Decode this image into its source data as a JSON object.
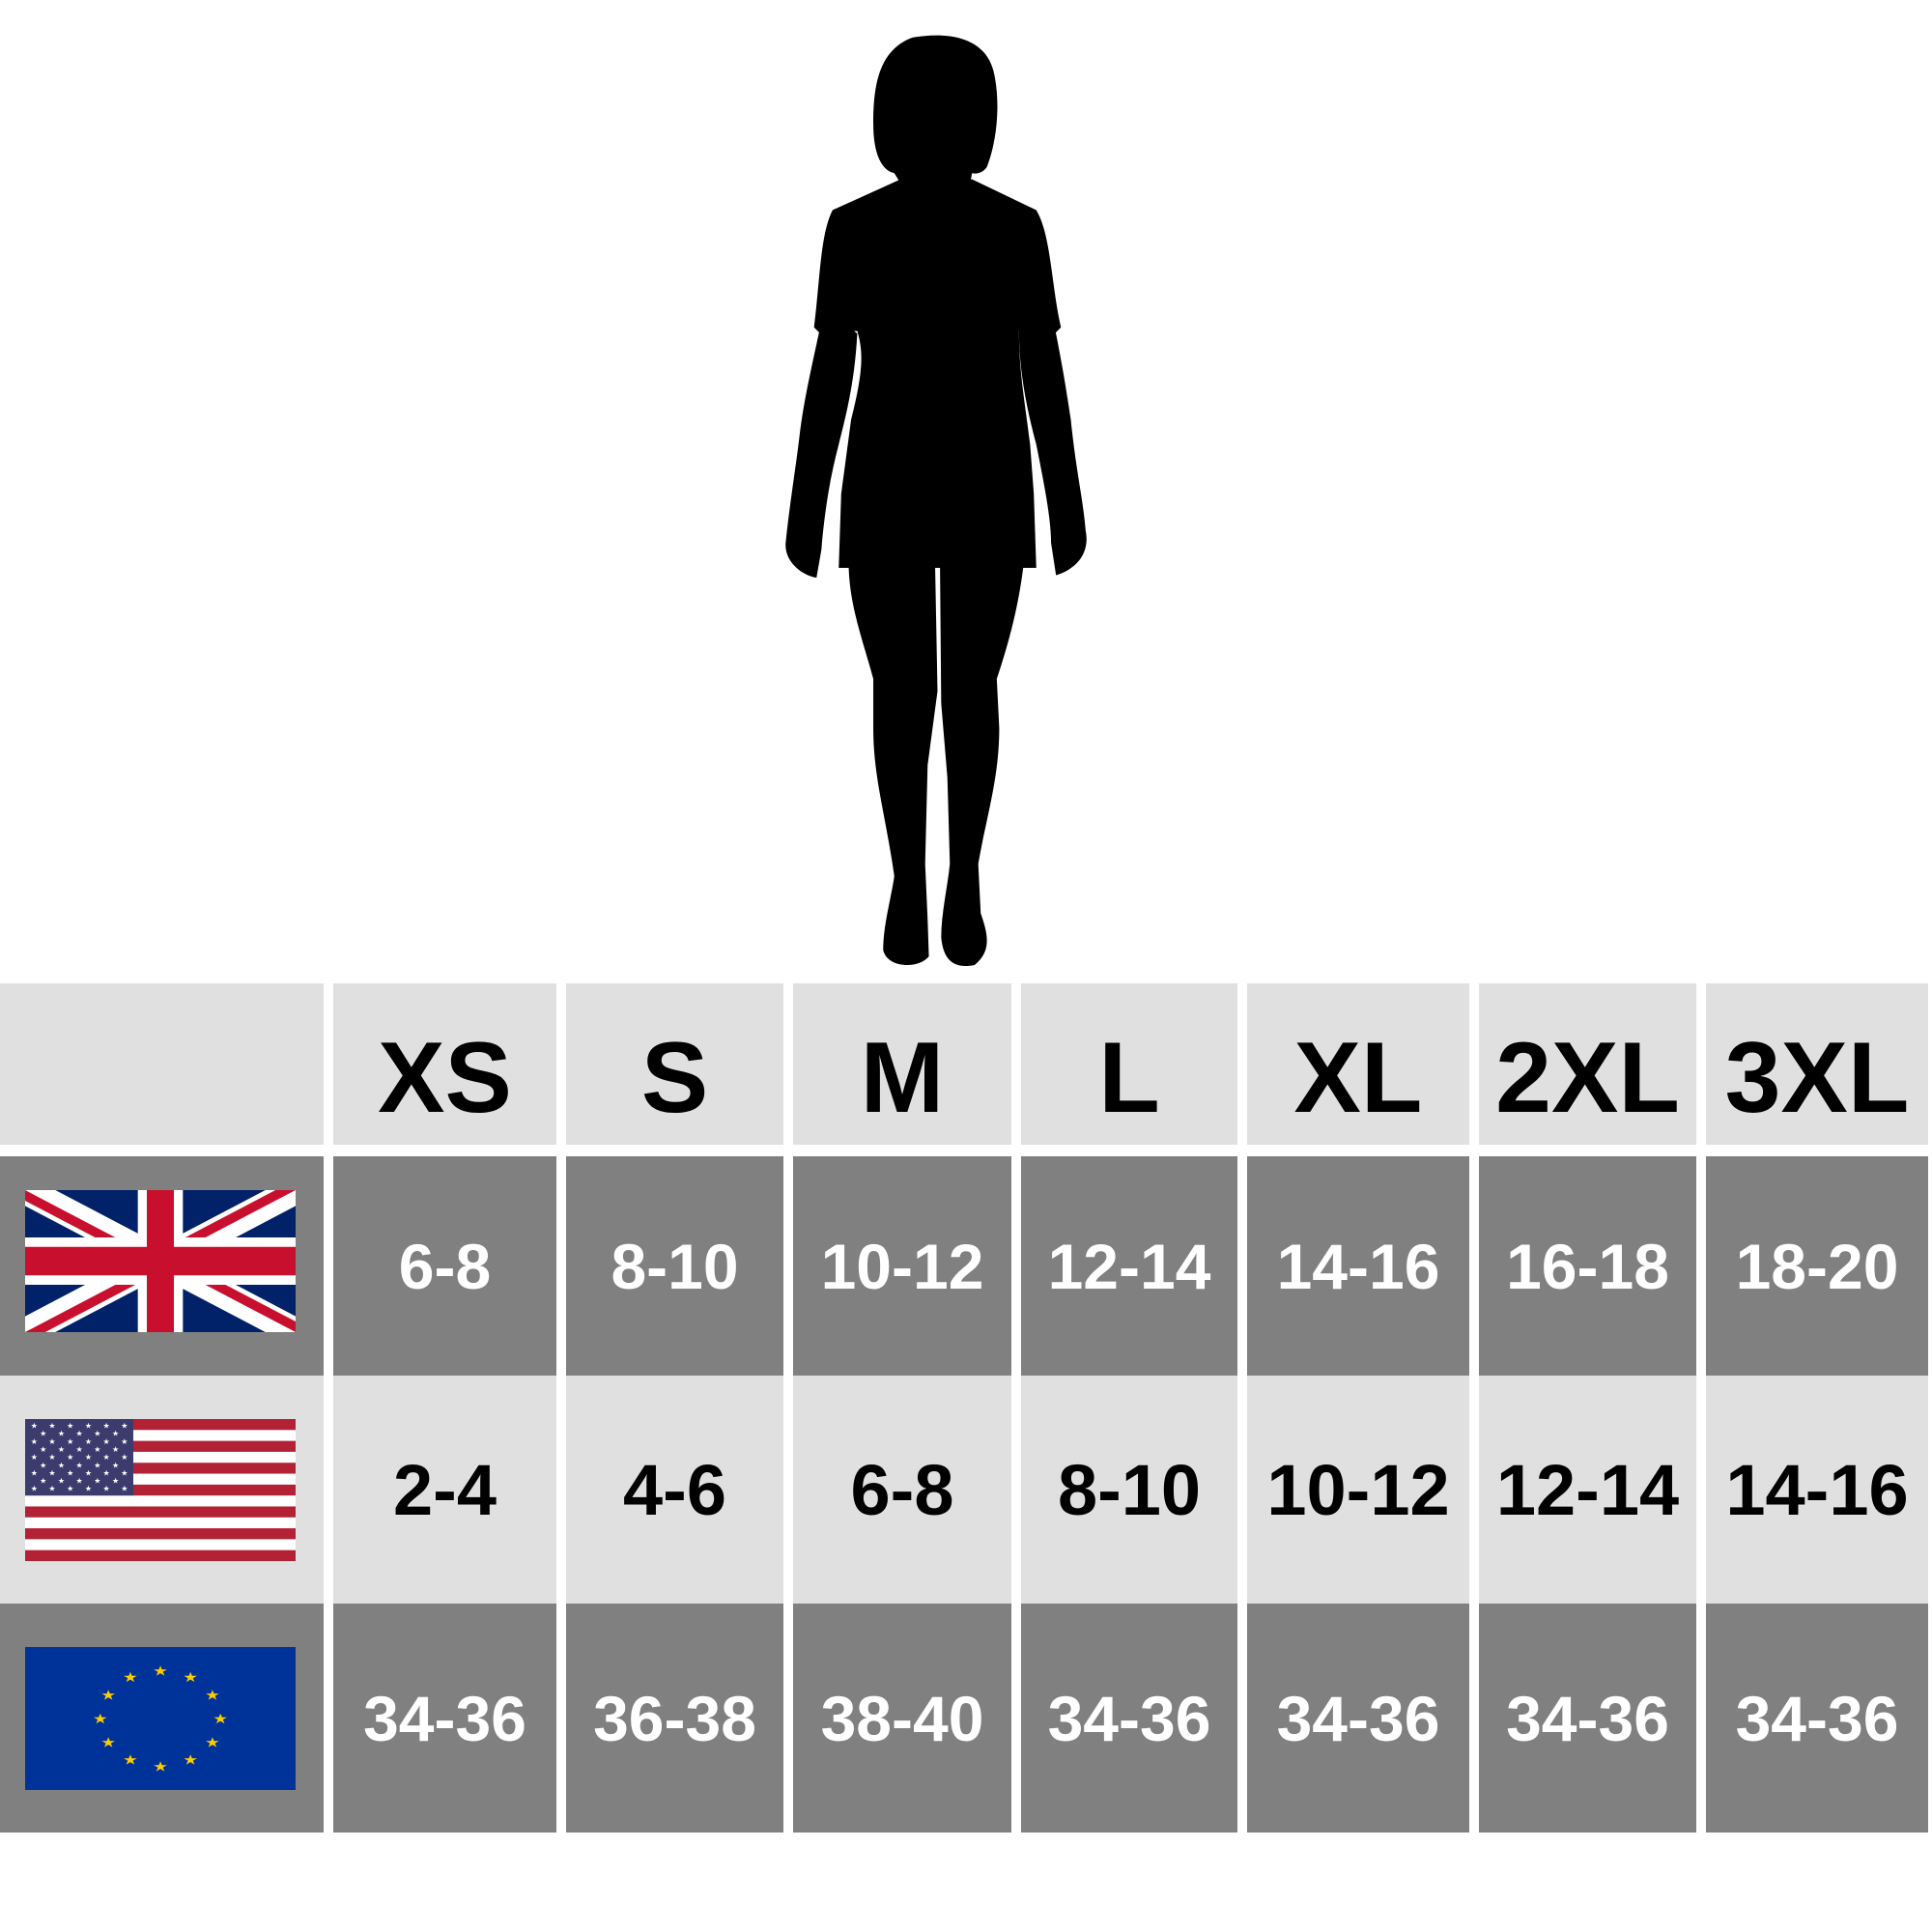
{
  "sizes": [
    "XS",
    "S",
    "M",
    "L",
    "XL",
    "2XL",
    "3XL"
  ],
  "rows": [
    {
      "region": "UK",
      "flag_icon": "uk-flag-icon",
      "values": [
        "6-8",
        "8-10",
        "10-12",
        "12-14",
        "14-16",
        "16-18",
        "18-20"
      ]
    },
    {
      "region": "US",
      "flag_icon": "us-flag-icon",
      "values": [
        "2-4",
        "4-6",
        "6-8",
        "8-10",
        "10-12",
        "12-14",
        "14-16"
      ]
    },
    {
      "region": "EU",
      "flag_icon": "eu-flag-icon",
      "values": [
        "34-36",
        "36-38",
        "38-40",
        "34-36",
        "34-36",
        "34-36",
        "34-36"
      ]
    }
  ],
  "colors": {
    "header_bg": "#e0e0e0",
    "dark_row_bg": "#808080",
    "light_row_bg": "#e0e0e0",
    "uk_blue": "#012169",
    "uk_red": "#c8102e",
    "us_red": "#b22234",
    "us_blue": "#3c3b6e",
    "eu_blue": "#003399",
    "eu_gold": "#ffcc00"
  },
  "figure": {
    "icon": "woman-silhouette-icon"
  }
}
